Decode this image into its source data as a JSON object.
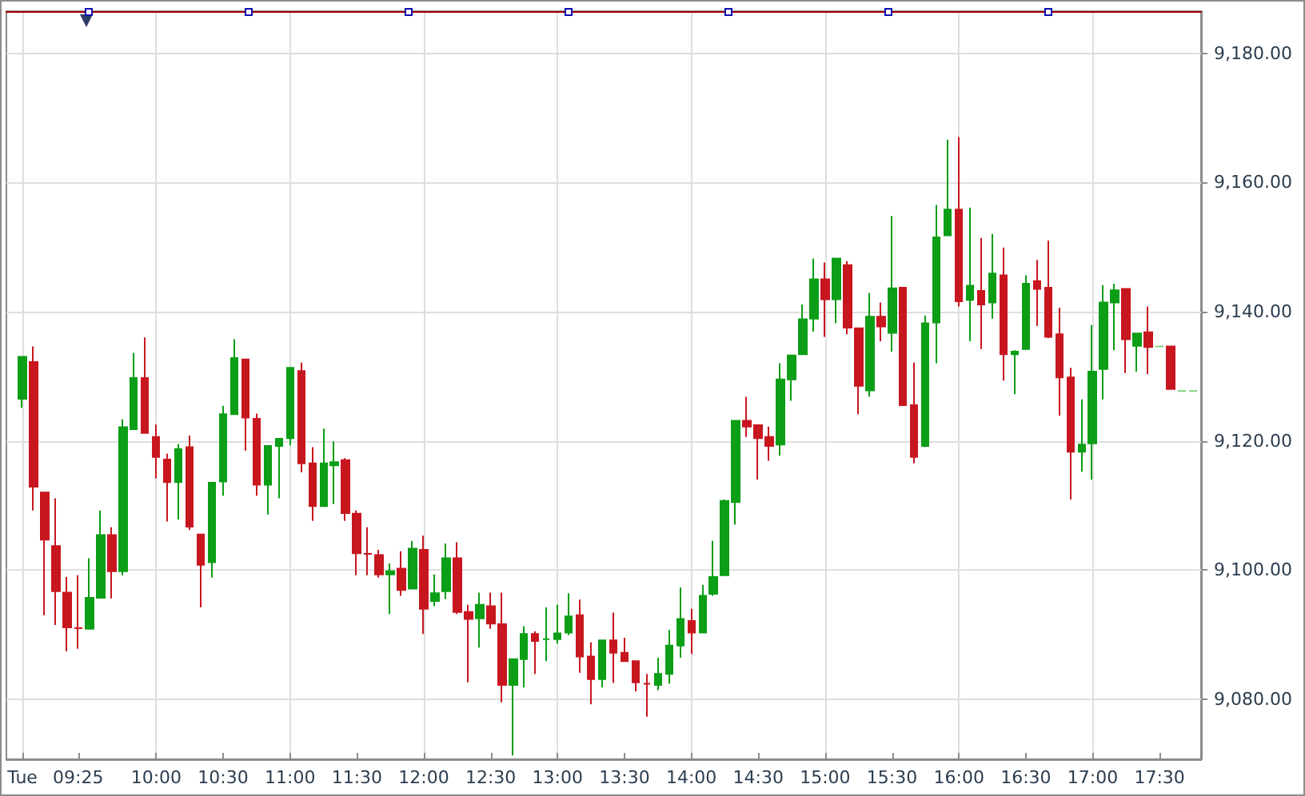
{
  "chart_data": {
    "type": "candlestick",
    "x": [
      9,
      9.0833,
      9.1667,
      9.25,
      9.3333,
      9.4167,
      9.5,
      9.5833,
      9.6667,
      9.75,
      9.8333,
      9.9167,
      10,
      10.0833,
      10.1667,
      10.25,
      10.3333,
      10.4167,
      10.5,
      10.5833,
      10.6667,
      10.75,
      10.8333,
      10.9167,
      11,
      11.0833,
      11.1667,
      11.25,
      11.3333,
      11.4167,
      11.5,
      11.5833,
      11.6667,
      11.75,
      11.8333,
      11.9167,
      12,
      12.0833,
      12.1667,
      12.25,
      12.3333,
      12.4167,
      12.5,
      12.5833,
      12.6667,
      12.75,
      12.8333,
      12.9167,
      13,
      13.0833,
      13.1667,
      13.25,
      13.3333,
      13.4167,
      13.5,
      13.5833,
      13.6667,
      13.75,
      13.8333,
      13.9167,
      14,
      14.0833,
      14.1667,
      14.25,
      14.3333,
      14.4167,
      14.5,
      14.5833,
      14.6667,
      14.75,
      14.8333,
      14.9167,
      15,
      15.0833,
      15.1667,
      15.25,
      15.3333,
      15.4167,
      15.5,
      15.5833,
      15.6667,
      15.75,
      15.8333,
      15.9167,
      16,
      16.0833,
      16.1667,
      16.25,
      16.3333,
      16.4167,
      16.5,
      16.5833,
      16.6667,
      16.75,
      16.8333,
      16.9167,
      17,
      17.0833,
      17.1667,
      17.25,
      17.3333,
      17.4167,
      17.5,
      17.5833,
      17.6667,
      17.75
    ],
    "ohlc": [
      [
        9126.5,
        9133.0,
        9125.1,
        9133.0
      ],
      [
        9132.2,
        9134.6,
        9109.2,
        9112.9
      ],
      [
        9112.0,
        9112.0,
        9093.0,
        9104.7
      ],
      [
        9103.7,
        9111.1,
        9091.5,
        9096.7
      ],
      [
        9096.5,
        9098.9,
        9087.4,
        9091.1
      ],
      [
        9091.0,
        9099.2,
        9087.8,
        9091.0
      ],
      [
        9090.9,
        9101.8,
        9090.9,
        9095.7
      ],
      [
        9095.7,
        9109.2,
        9095.7,
        9105.4
      ],
      [
        9105.4,
        9106.6,
        9095.6,
        9099.8
      ],
      [
        9099.8,
        9123.3,
        9099.2,
        9122.1
      ],
      [
        9121.8,
        9133.6,
        9121.8,
        9129.7
      ],
      [
        9129.7,
        9136.0,
        9121.2,
        9121.2
      ],
      [
        9120.6,
        9122.5,
        9114.2,
        9117.5
      ],
      [
        9117.1,
        9118.0,
        9107.5,
        9113.6
      ],
      [
        9113.6,
        9119.5,
        9107.8,
        9118.7
      ],
      [
        9119.0,
        9120.8,
        9106.2,
        9106.7
      ],
      [
        9105.5,
        9105.5,
        9094.2,
        9100.8
      ],
      [
        9101.2,
        9113.5,
        9098.8,
        9113.5
      ],
      [
        9113.7,
        9125.4,
        9111.5,
        9124.1
      ],
      [
        9124.1,
        9135.7,
        9124.1,
        9132.8
      ],
      [
        9132.6,
        9132.6,
        9118.5,
        9123.6
      ],
      [
        9123.4,
        9124.2,
        9111.5,
        9113.2
      ],
      [
        9113.2,
        9119.2,
        9108.6,
        9119.2
      ],
      [
        9119.2,
        9120.3,
        9111.1,
        9120.3
      ],
      [
        9120.4,
        9131.3,
        9119.3,
        9131.3
      ],
      [
        9130.8,
        9132.1,
        9115.1,
        9116.5
      ],
      [
        9116.5,
        9119.0,
        9107.6,
        9109.9
      ],
      [
        9109.9,
        9121.9,
        9109.9,
        9116.5
      ],
      [
        9116.2,
        9119.9,
        9110.2,
        9116.7
      ],
      [
        9117.0,
        9117.3,
        9107.6,
        9108.8
      ],
      [
        9108.7,
        9109.2,
        9099.2,
        9102.6
      ],
      [
        9102.5,
        9106.6,
        9099.2,
        9102.5
      ],
      [
        9102.3,
        9103.1,
        9098.8,
        9099.3
      ],
      [
        9099.3,
        9101.0,
        9093.2,
        9099.8
      ],
      [
        9100.2,
        9102.9,
        9096.0,
        9096.9
      ],
      [
        9097.1,
        9104.5,
        9097.1,
        9103.3
      ],
      [
        9103.1,
        9105.3,
        9090.1,
        9094.0
      ],
      [
        9095.2,
        9099.3,
        9094.4,
        9096.4
      ],
      [
        9096.7,
        9104.1,
        9095.5,
        9101.8
      ],
      [
        9101.8,
        9104.3,
        9093.2,
        9093.5
      ],
      [
        9093.5,
        9094.6,
        9082.6,
        9092.4
      ],
      [
        9092.5,
        9096.5,
        9088.0,
        9094.6
      ],
      [
        9094.4,
        9096.5,
        9090.9,
        9091.7
      ],
      [
        9091.6,
        9096.5,
        9079.5,
        9082.2
      ],
      [
        9082.2,
        9086.2,
        9071.3,
        9086.2
      ],
      [
        9086.2,
        9091.3,
        9081.8,
        9090.1
      ],
      [
        9090.1,
        9090.5,
        9083.9,
        9089.0
      ],
      [
        9089.3,
        9094.2,
        9085.9,
        9089.3
      ],
      [
        9089.3,
        9094.6,
        9088.6,
        9090.2
      ],
      [
        9090.3,
        9096.4,
        9089.9,
        9092.8
      ],
      [
        9093.0,
        9095.4,
        9084.1,
        9086.6
      ],
      [
        9086.6,
        9088.8,
        9079.2,
        9083.1
      ],
      [
        9083.1,
        9089.1,
        9081.8,
        9089.1
      ],
      [
        9089.1,
        9093.4,
        9082.5,
        9087.2
      ],
      [
        9087.2,
        9089.5,
        9085.9,
        9085.9
      ],
      [
        9085.9,
        9085.9,
        9081.2,
        9082.6
      ],
      [
        9082.4,
        9083.9,
        9077.3,
        9082.4
      ],
      [
        9082.2,
        9086.4,
        9081.4,
        9083.9
      ],
      [
        9083.9,
        9090.7,
        9082.4,
        9088.3
      ],
      [
        9088.3,
        9097.3,
        9086.4,
        9092.4
      ],
      [
        9092.1,
        9094.0,
        9087.0,
        9090.3
      ],
      [
        9090.3,
        9097.7,
        9090.3,
        9096.0
      ],
      [
        9096.3,
        9104.5,
        9096.0,
        9098.9
      ],
      [
        9099.2,
        9110.9,
        9099.2,
        9110.7
      ],
      [
        9110.5,
        9123.2,
        9107.0,
        9123.1
      ],
      [
        9123.1,
        9126.8,
        9120.6,
        9122.2
      ],
      [
        9122.4,
        9122.4,
        9114.0,
        9120.4
      ],
      [
        9120.6,
        9122.2,
        9116.9,
        9119.2
      ],
      [
        9119.4,
        9132.0,
        9117.7,
        9129.5
      ],
      [
        9129.5,
        9133.2,
        9126.2,
        9133.2
      ],
      [
        9133.4,
        9141.1,
        9133.4,
        9138.8
      ],
      [
        9138.9,
        9148.2,
        9136.9,
        9145.0
      ],
      [
        9145.0,
        9147.6,
        9136.1,
        9141.9
      ],
      [
        9141.9,
        9148.2,
        9138.2,
        9148.2
      ],
      [
        9147.2,
        9147.8,
        9136.5,
        9137.5
      ],
      [
        9137.4,
        9137.4,
        9124.1,
        9128.5
      ],
      [
        9127.8,
        9142.9,
        9126.8,
        9139.2
      ],
      [
        9139.2,
        9141.4,
        9135.4,
        9137.7
      ],
      [
        9136.7,
        9154.8,
        9133.8,
        9143.6
      ],
      [
        9143.7,
        9143.7,
        9125.5,
        9125.5
      ],
      [
        9125.5,
        9132.1,
        9116.5,
        9117.5
      ],
      [
        9119.2,
        9139.4,
        9119.0,
        9138.2
      ],
      [
        9138.3,
        9156.5,
        9132.0,
        9151.5
      ],
      [
        9151.8,
        9166.6,
        9151.8,
        9155.8
      ],
      [
        9155.8,
        9167.0,
        9140.8,
        9141.6
      ],
      [
        9141.8,
        9156.1,
        9135.4,
        9144.0
      ],
      [
        9143.2,
        9151.4,
        9134.2,
        9141.1
      ],
      [
        9141.4,
        9152.0,
        9138.9,
        9145.9
      ],
      [
        9145.6,
        9149.9,
        9129.3,
        9133.4
      ],
      [
        9133.4,
        9134.0,
        9127.2,
        9133.8
      ],
      [
        9134.2,
        9145.6,
        9134.2,
        9144.3
      ],
      [
        9144.7,
        9148.0,
        9137.8,
        9143.5
      ],
      [
        9143.7,
        9151.0,
        9135.9,
        9136.1
      ],
      [
        9136.5,
        9140.6,
        9123.9,
        9129.8
      ],
      [
        9129.8,
        9131.3,
        9110.9,
        9118.3
      ],
      [
        9118.3,
        9126.4,
        9115.2,
        9119.4
      ],
      [
        9119.6,
        9137.9,
        9114.0,
        9130.7
      ],
      [
        9131.1,
        9144.1,
        9126.4,
        9141.4
      ],
      [
        9141.4,
        9144.3,
        9134.0,
        9143.3
      ],
      [
        9143.5,
        9143.5,
        9130.5,
        9135.7
      ],
      [
        9134.7,
        9136.6,
        9130.7,
        9136.6
      ],
      [
        9136.8,
        9140.8,
        9130.3,
        9134.5
      ],
      [
        9134.6,
        9134.6,
        9134.6,
        9134.6
      ],
      [
        9134.6,
        9134.6,
        9128.0,
        9128.0
      ],
      [
        9127.7,
        9127.7,
        9127.7,
        9127.7
      ],
      [
        9127.7,
        9127.7,
        9127.7,
        9127.7
      ]
    ],
    "colors": [
      "#0b9e16",
      "#c8161f",
      "#c8161f",
      "#c8161f",
      "#c8161f",
      "#c8161f",
      "#0b9e16",
      "#0b9e16",
      "#c8161f",
      "#0b9e16",
      "#0b9e16",
      "#c8161f",
      "#c8161f",
      "#c8161f",
      "#0b9e16",
      "#c8161f",
      "#c8161f",
      "#0b9e16",
      "#0b9e16",
      "#0b9e16",
      "#c8161f",
      "#c8161f",
      "#0b9e16",
      "#0b9e16",
      "#0b9e16",
      "#c8161f",
      "#c8161f",
      "#0b9e16",
      "#0b9e16",
      "#c8161f",
      "#c8161f",
      "#c8161f",
      "#c8161f",
      "#0b9e16",
      "#c8161f",
      "#0b9e16",
      "#c8161f",
      "#0b9e16",
      "#0b9e16",
      "#c8161f",
      "#c8161f",
      "#0b9e16",
      "#c8161f",
      "#c8161f",
      "#0b9e16",
      "#0b9e16",
      "#c8161f",
      "#0b9e16",
      "#0b9e16",
      "#0b9e16",
      "#c8161f",
      "#c8161f",
      "#0b9e16",
      "#c8161f",
      "#c8161f",
      "#c8161f",
      "#c8161f",
      "#0b9e16",
      "#0b9e16",
      "#0b9e16",
      "#c8161f",
      "#0b9e16",
      "#0b9e16",
      "#0b9e16",
      "#0b9e16",
      "#c8161f",
      "#c8161f",
      "#c8161f",
      "#0b9e16",
      "#0b9e16",
      "#0b9e16",
      "#0b9e16",
      "#c8161f",
      "#0b9e16",
      "#c8161f",
      "#c8161f",
      "#0b9e16",
      "#c8161f",
      "#0b9e16",
      "#c8161f",
      "#c8161f",
      "#0b9e16",
      "#0b9e16",
      "#0b9e16",
      "#c8161f",
      "#0b9e16",
      "#c8161f",
      "#0b9e16",
      "#c8161f",
      "#0b9e16",
      "#0b9e16",
      "#c8161f",
      "#c8161f",
      "#c8161f",
      "#c8161f",
      "#0b9e16",
      "#0b9e16",
      "#0b9e16",
      "#0b9e16",
      "#c8161f",
      "#0b9e16",
      "#c8161f",
      "#7fd07f",
      "#c8161f",
      "#7fd07f",
      "#7fd07f"
    ],
    "xlim": [
      8.88,
      17.81
    ],
    "xticks": [
      {
        "value": 9,
        "label": "Tue"
      },
      {
        "value": 9.4167,
        "label": "09:25"
      },
      {
        "value": 10,
        "label": "10:00"
      },
      {
        "value": 10.5,
        "label": "10:30"
      },
      {
        "value": 11,
        "label": "11:00"
      },
      {
        "value": 11.5,
        "label": "11:30"
      },
      {
        "value": 12,
        "label": "12:00"
      },
      {
        "value": 12.5,
        "label": "12:30"
      },
      {
        "value": 13,
        "label": "13:00"
      },
      {
        "value": 13.5,
        "label": "13:30"
      },
      {
        "value": 14,
        "label": "14:00"
      },
      {
        "value": 14.5,
        "label": "14:30"
      },
      {
        "value": 15,
        "label": "15:00"
      },
      {
        "value": 15.5,
        "label": "15:30"
      },
      {
        "value": 16,
        "label": "16:00"
      },
      {
        "value": 16.5,
        "label": "16:30"
      },
      {
        "value": 17,
        "label": "17:00"
      },
      {
        "value": 17.5,
        "label": "17:30"
      }
    ],
    "ylim": [
      9070.7,
      9186.5
    ],
    "yticks": [
      {
        "value": 9080,
        "label": "9,080.00"
      },
      {
        "value": 9100,
        "label": "9,100.00"
      },
      {
        "value": 9120,
        "label": "9,120.00"
      },
      {
        "value": 9140,
        "label": "9,140.00"
      },
      {
        "value": 9160,
        "label": "9,160.00"
      },
      {
        "value": 9180,
        "label": "9,180.00"
      }
    ],
    "grid": true
  }
}
